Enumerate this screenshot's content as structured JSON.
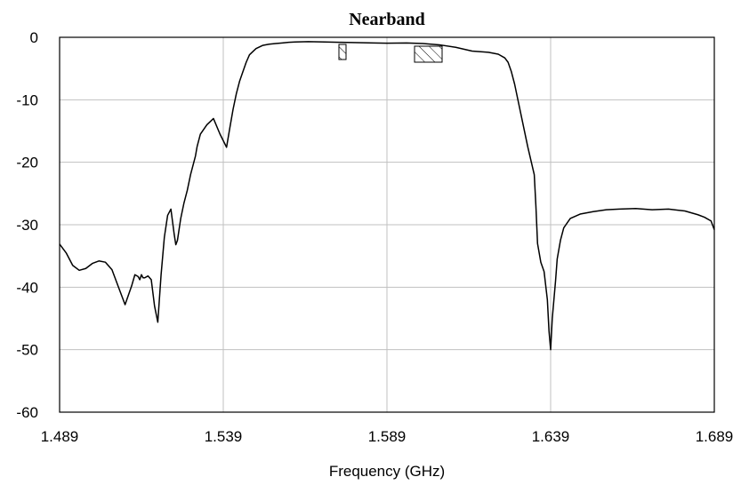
{
  "chart_data": {
    "type": "line",
    "title": "Nearband",
    "xlabel": "Frequency (GHz)",
    "ylabel": "",
    "xlim": [
      1.489,
      1.689
    ],
    "ylim": [
      -60,
      0
    ],
    "x_ticks": [
      1.489,
      1.539,
      1.589,
      1.639,
      1.689
    ],
    "x_tick_labels": [
      "1.489",
      "1.539",
      "1.589",
      "1.639",
      "1.689"
    ],
    "y_ticks": [
      0,
      -10,
      -20,
      -30,
      -40,
      -50,
      -60
    ],
    "y_tick_labels": [
      "0",
      "-10",
      "-20",
      "-30",
      "-40",
      "-50",
      "-60"
    ],
    "grid": true,
    "line_color": "#000000",
    "grid_color": "#c0c0c0",
    "series": [
      {
        "x": [
          1.489,
          1.491,
          1.493,
          1.495,
          1.497,
          1.499,
          1.501,
          1.503,
          1.505,
          1.507,
          1.509,
          1.511,
          1.512,
          1.513,
          1.5135,
          1.514,
          1.5145,
          1.515,
          1.516,
          1.517,
          1.518,
          1.519,
          1.52,
          1.521,
          1.522,
          1.523,
          1.524,
          1.5245,
          1.525,
          1.526,
          1.527,
          1.528,
          1.529,
          1.5295,
          1.53,
          1.5305,
          1.531,
          1.532,
          1.534,
          1.536,
          1.538,
          1.54,
          1.541,
          1.542,
          1.543,
          1.5435,
          1.544,
          1.545,
          1.546,
          1.547,
          1.549,
          1.551,
          1.553,
          1.555,
          1.557,
          1.559,
          1.561,
          1.565,
          1.57,
          1.575,
          1.58,
          1.585,
          1.589,
          1.595,
          1.6,
          1.605,
          1.61,
          1.615,
          1.62,
          1.623,
          1.625,
          1.626,
          1.627,
          1.628,
          1.63,
          1.632,
          1.634,
          1.6345,
          1.635,
          1.636,
          1.637,
          1.638,
          1.6385,
          1.639,
          1.6395,
          1.6405,
          1.641,
          1.642,
          1.643,
          1.645,
          1.648,
          1.652,
          1.656,
          1.66,
          1.665,
          1.67,
          1.675,
          1.68,
          1.684,
          1.686,
          1.688,
          1.689
        ],
        "y": [
          -33.1,
          -34.5,
          -36.5,
          -37.3,
          -37.0,
          -36.2,
          -35.8,
          -36.0,
          -37.2,
          -40.0,
          -42.8,
          -39.8,
          -38.0,
          -38.3,
          -38.8,
          -38.0,
          -38.5,
          -38.5,
          -38.2,
          -38.8,
          -43.0,
          -45.6,
          -38.0,
          -32.0,
          -28.5,
          -27.5,
          -31.5,
          -33.2,
          -32.5,
          -29.0,
          -26.5,
          -24.5,
          -22.0,
          -21.0,
          -20.0,
          -19.0,
          -17.5,
          -15.5,
          -14.0,
          -13.0,
          -15.5,
          -17.6,
          -14.5,
          -11.5,
          -9.0,
          -8.0,
          -7.0,
          -5.5,
          -4.0,
          -2.8,
          -1.8,
          -1.3,
          -1.1,
          -1.0,
          -0.9,
          -0.8,
          -0.75,
          -0.7,
          -0.75,
          -0.8,
          -0.85,
          -0.9,
          -0.95,
          -0.9,
          -1.0,
          -1.2,
          -1.6,
          -2.2,
          -2.4,
          -2.7,
          -3.3,
          -4.0,
          -5.5,
          -7.5,
          -12.5,
          -17.5,
          -22.0,
          -27.0,
          -33.0,
          -36.0,
          -37.5,
          -42.0,
          -47.0,
          -50.0,
          -45.0,
          -39.0,
          -35.5,
          -32.5,
          -30.5,
          -29.0,
          -28.3,
          -27.9,
          -27.6,
          -27.5,
          -27.4,
          -27.6,
          -27.5,
          -27.8,
          -28.4,
          -28.8,
          -29.4,
          -30.8
        ]
      }
    ]
  }
}
